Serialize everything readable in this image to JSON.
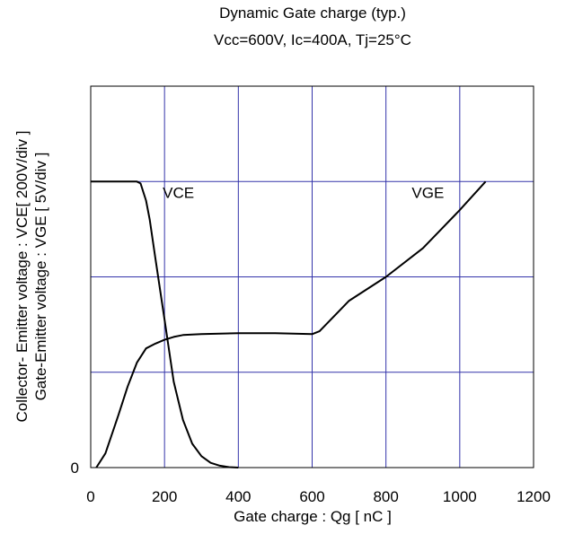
{
  "chart_data": {
    "type": "line",
    "title": "Dynamic Gate charge  (typ.)",
    "subtitle": "Vcc=600V, Ic=400A,  Tj=25°C",
    "xlabel": "Gate charge : Qg [ nC ]",
    "ylabel_lines": [
      "Collector- Emitter voltage : VCE[ 200V/div ]",
      "Gate-Emitter voltage : VGE [ 5V/div ]"
    ],
    "xlim": [
      0,
      1200
    ],
    "ylim_div": [
      0,
      4
    ],
    "x_ticks": [
      0,
      200,
      400,
      600,
      800,
      1000,
      1200
    ],
    "y_tick_labels": [
      {
        "div": 0,
        "label": "0"
      }
    ],
    "grid": true,
    "colors": {
      "grid": "#3333aa",
      "frame": "#000000",
      "line": "#000000"
    },
    "series": [
      {
        "name": "VCE",
        "x": [
          0,
          100,
          125,
          135,
          150,
          160,
          175,
          200,
          225,
          250,
          275,
          300,
          325,
          350,
          375,
          400
        ],
        "y": [
          3.0,
          3.0,
          3.0,
          2.98,
          2.8,
          2.6,
          2.2,
          1.55,
          0.9,
          0.5,
          0.25,
          0.12,
          0.05,
          0.02,
          0.005,
          0.0
        ]
      },
      {
        "name": "VGE",
        "x": [
          15,
          40,
          75,
          100,
          125,
          150,
          175,
          200,
          225,
          250,
          300,
          400,
          500,
          600,
          620,
          700,
          800,
          900,
          1000,
          1070
        ],
        "y": [
          0.0,
          0.15,
          0.55,
          0.85,
          1.1,
          1.25,
          1.3,
          1.34,
          1.37,
          1.39,
          1.4,
          1.41,
          1.41,
          1.4,
          1.43,
          1.75,
          2.0,
          2.3,
          2.7,
          3.0
        ]
      }
    ]
  }
}
